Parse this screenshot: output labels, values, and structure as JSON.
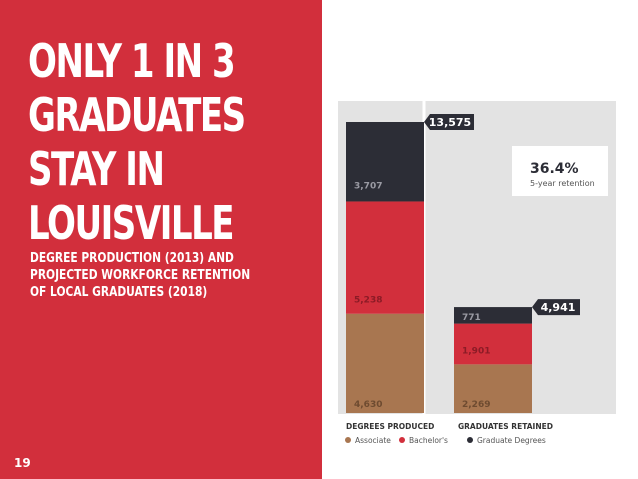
{
  "headline": [
    "ONLY 1 IN 3",
    "GRADUATES",
    "STAY IN",
    "LOUISVILLE"
  ],
  "subtitle": [
    "DEGREE PRODUCTION (2013) AND",
    "PROJECTED WORKFORCE RETENTION",
    "OF LOCAL GRADUATES (2018)"
  ],
  "page_number": "19",
  "colors": {
    "red": "#d22f3c",
    "brown": "#a87650",
    "dark": "#2c2d36",
    "panel": "#e3e3e3"
  },
  "chart_data": {
    "type": "bar",
    "stacked": true,
    "categories": [
      "DEGREES PRODUCED",
      "GRADUATES RETAINED"
    ],
    "series": [
      {
        "name": "Associate",
        "values": [
          4630,
          2269
        ],
        "color": "#a87650"
      },
      {
        "name": "Bachelor's",
        "values": [
          5238,
          1901
        ],
        "color": "#d22f3c"
      },
      {
        "name": "Graduate Degrees",
        "values": [
          3707,
          771
        ],
        "color": "#2c2d36"
      }
    ],
    "value_labels": [
      [
        "4,630",
        "5,238",
        "3,707"
      ],
      [
        "2,269",
        "1,901",
        "771"
      ]
    ],
    "totals": [
      "13,575",
      "4,941"
    ],
    "callout": {
      "value": "36.4%",
      "label": "5-year retention"
    },
    "legend_position": "bottom",
    "grid": false
  }
}
